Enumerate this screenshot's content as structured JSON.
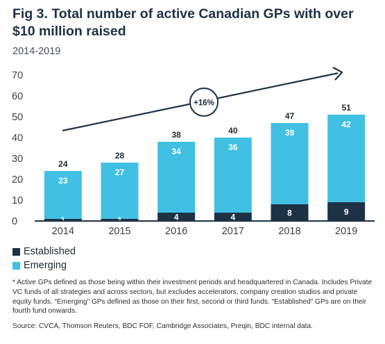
{
  "title": "Fig 3. Total number of active Canadian GPs with over $10 million raised",
  "subtitle": "2014-2019",
  "colors": {
    "established": "#1e3245",
    "emerging": "#41c0e3",
    "axis": "#1e3245",
    "arrow": "#1e3245"
  },
  "annotation": {
    "growth_label": "+16%"
  },
  "chart_data": {
    "type": "bar",
    "stacked": true,
    "categories": [
      "2014",
      "2015",
      "2016",
      "2017",
      "2018",
      "2019"
    ],
    "series": [
      {
        "name": "Established",
        "values": [
          1,
          1,
          4,
          4,
          8,
          9
        ]
      },
      {
        "name": "Emerging",
        "values": [
          23,
          27,
          34,
          36,
          39,
          42
        ]
      }
    ],
    "totals": [
      24,
      28,
      38,
      40,
      47,
      51
    ],
    "ylim": [
      0,
      70
    ],
    "yticks": [
      0,
      10,
      20,
      30,
      40,
      50,
      60,
      70
    ],
    "grid": false,
    "legend_position": "bottom-left"
  },
  "footnote": "* Active GPs defined as those being within their investment periods and headquartered in Canada. Includes Private VC funds of all strategies and across sectors, but excludes accelerators, company creation studios and private equity funds. “Emerging” GPs defined as those on their first, second or third funds. “Established” GPs are on their fourth fund onwards.",
  "source": "Source: CVCA, Thomson Reuters, BDC FOF, Cambridge Associates, Preqin, BDC internal data."
}
